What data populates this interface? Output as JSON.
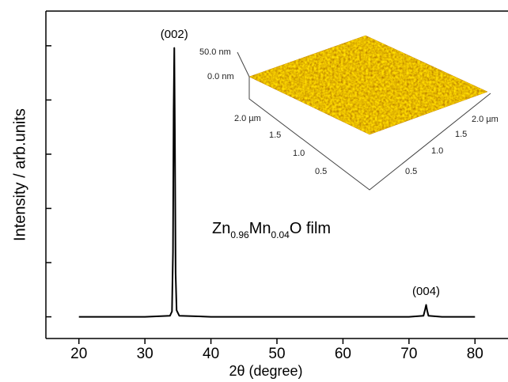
{
  "chart_data": {
    "type": "line",
    "x_label": "2θ (degree)",
    "y_label": "Intensity / arb.units",
    "xlim": [
      15,
      85
    ],
    "xticks": [
      20,
      30,
      40,
      50,
      60,
      70,
      80
    ],
    "ylim": [
      -0.2,
      2.82
    ],
    "yticks": [
      0,
      0.5,
      1,
      1.5,
      2,
      2.5
    ],
    "show_ytick_labels": false,
    "color": "#000000",
    "x": [
      20,
      25,
      30,
      33.8,
      34.1,
      34.25,
      34.35,
      34.45,
      34.55,
      34.65,
      34.8,
      35.2,
      40,
      45,
      50,
      55,
      60,
      65,
      70,
      72.2,
      72.45,
      72.6,
      72.75,
      72.95,
      75,
      80
    ],
    "values": [
      0.0,
      0.0,
      0.0,
      0.01,
      0.05,
      0.6,
      1.9,
      2.48,
      1.6,
      0.4,
      0.06,
      0.01,
      0.0,
      0.0,
      0.0,
      0.0,
      0.0,
      0.0,
      0.0,
      0.01,
      0.07,
      0.11,
      0.06,
      0.01,
      0.0,
      0.0
    ],
    "annotations": [
      {
        "text": "(002)",
        "x": 34.45,
        "y": 2.6
      },
      {
        "text": "(004)",
        "x": 72.6,
        "y": 0.23
      }
    ],
    "sample_label": [
      "Zn",
      "0.96",
      "Mn",
      "0.04",
      "O film"
    ],
    "inset": {
      "z_labels": [
        "50.0 nm",
        "0.0 nm"
      ],
      "left_axis_labels": [
        "2.0 µm",
        "1.5",
        "1.0",
        "0.5"
      ],
      "right_axis_labels": [
        "2.0 µm",
        "1.5",
        "1.0",
        "0.5"
      ]
    }
  }
}
